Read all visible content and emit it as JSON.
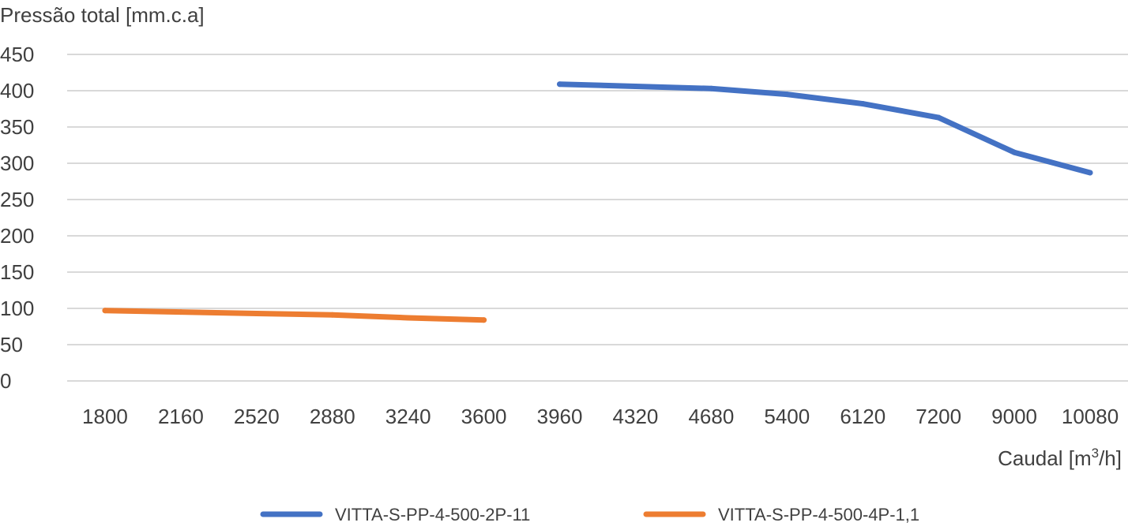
{
  "chart_data": {
    "type": "line",
    "ylabel": "Pressão total [mm.c.a]",
    "xlabel_main": "Caudal [m",
    "xlabel_sup": "3",
    "xlabel_end": "/h]",
    "categories": [
      "1800",
      "2160",
      "2520",
      "2880",
      "3240",
      "3600",
      "3960",
      "4320",
      "4680",
      "5400",
      "6120",
      "7200",
      "9000",
      "10080"
    ],
    "ylim": [
      0,
      450
    ],
    "yticks": [
      0,
      50,
      100,
      150,
      200,
      250,
      300,
      350,
      400,
      450
    ],
    "grid": true,
    "legend_position": "bottom",
    "series": [
      {
        "name": "VITTA-S-PP-4-500-2P-11",
        "color": "#4472C4",
        "values": [
          null,
          null,
          null,
          null,
          null,
          null,
          409,
          406,
          403,
          395,
          382,
          363,
          315,
          287
        ]
      },
      {
        "name": "VITTA-S-PP-4-500-4P-1,1",
        "color": "#ED7D31",
        "values": [
          97,
          95,
          93,
          91,
          87,
          84,
          null,
          null,
          null,
          null,
          null,
          null,
          null,
          null
        ]
      }
    ]
  }
}
